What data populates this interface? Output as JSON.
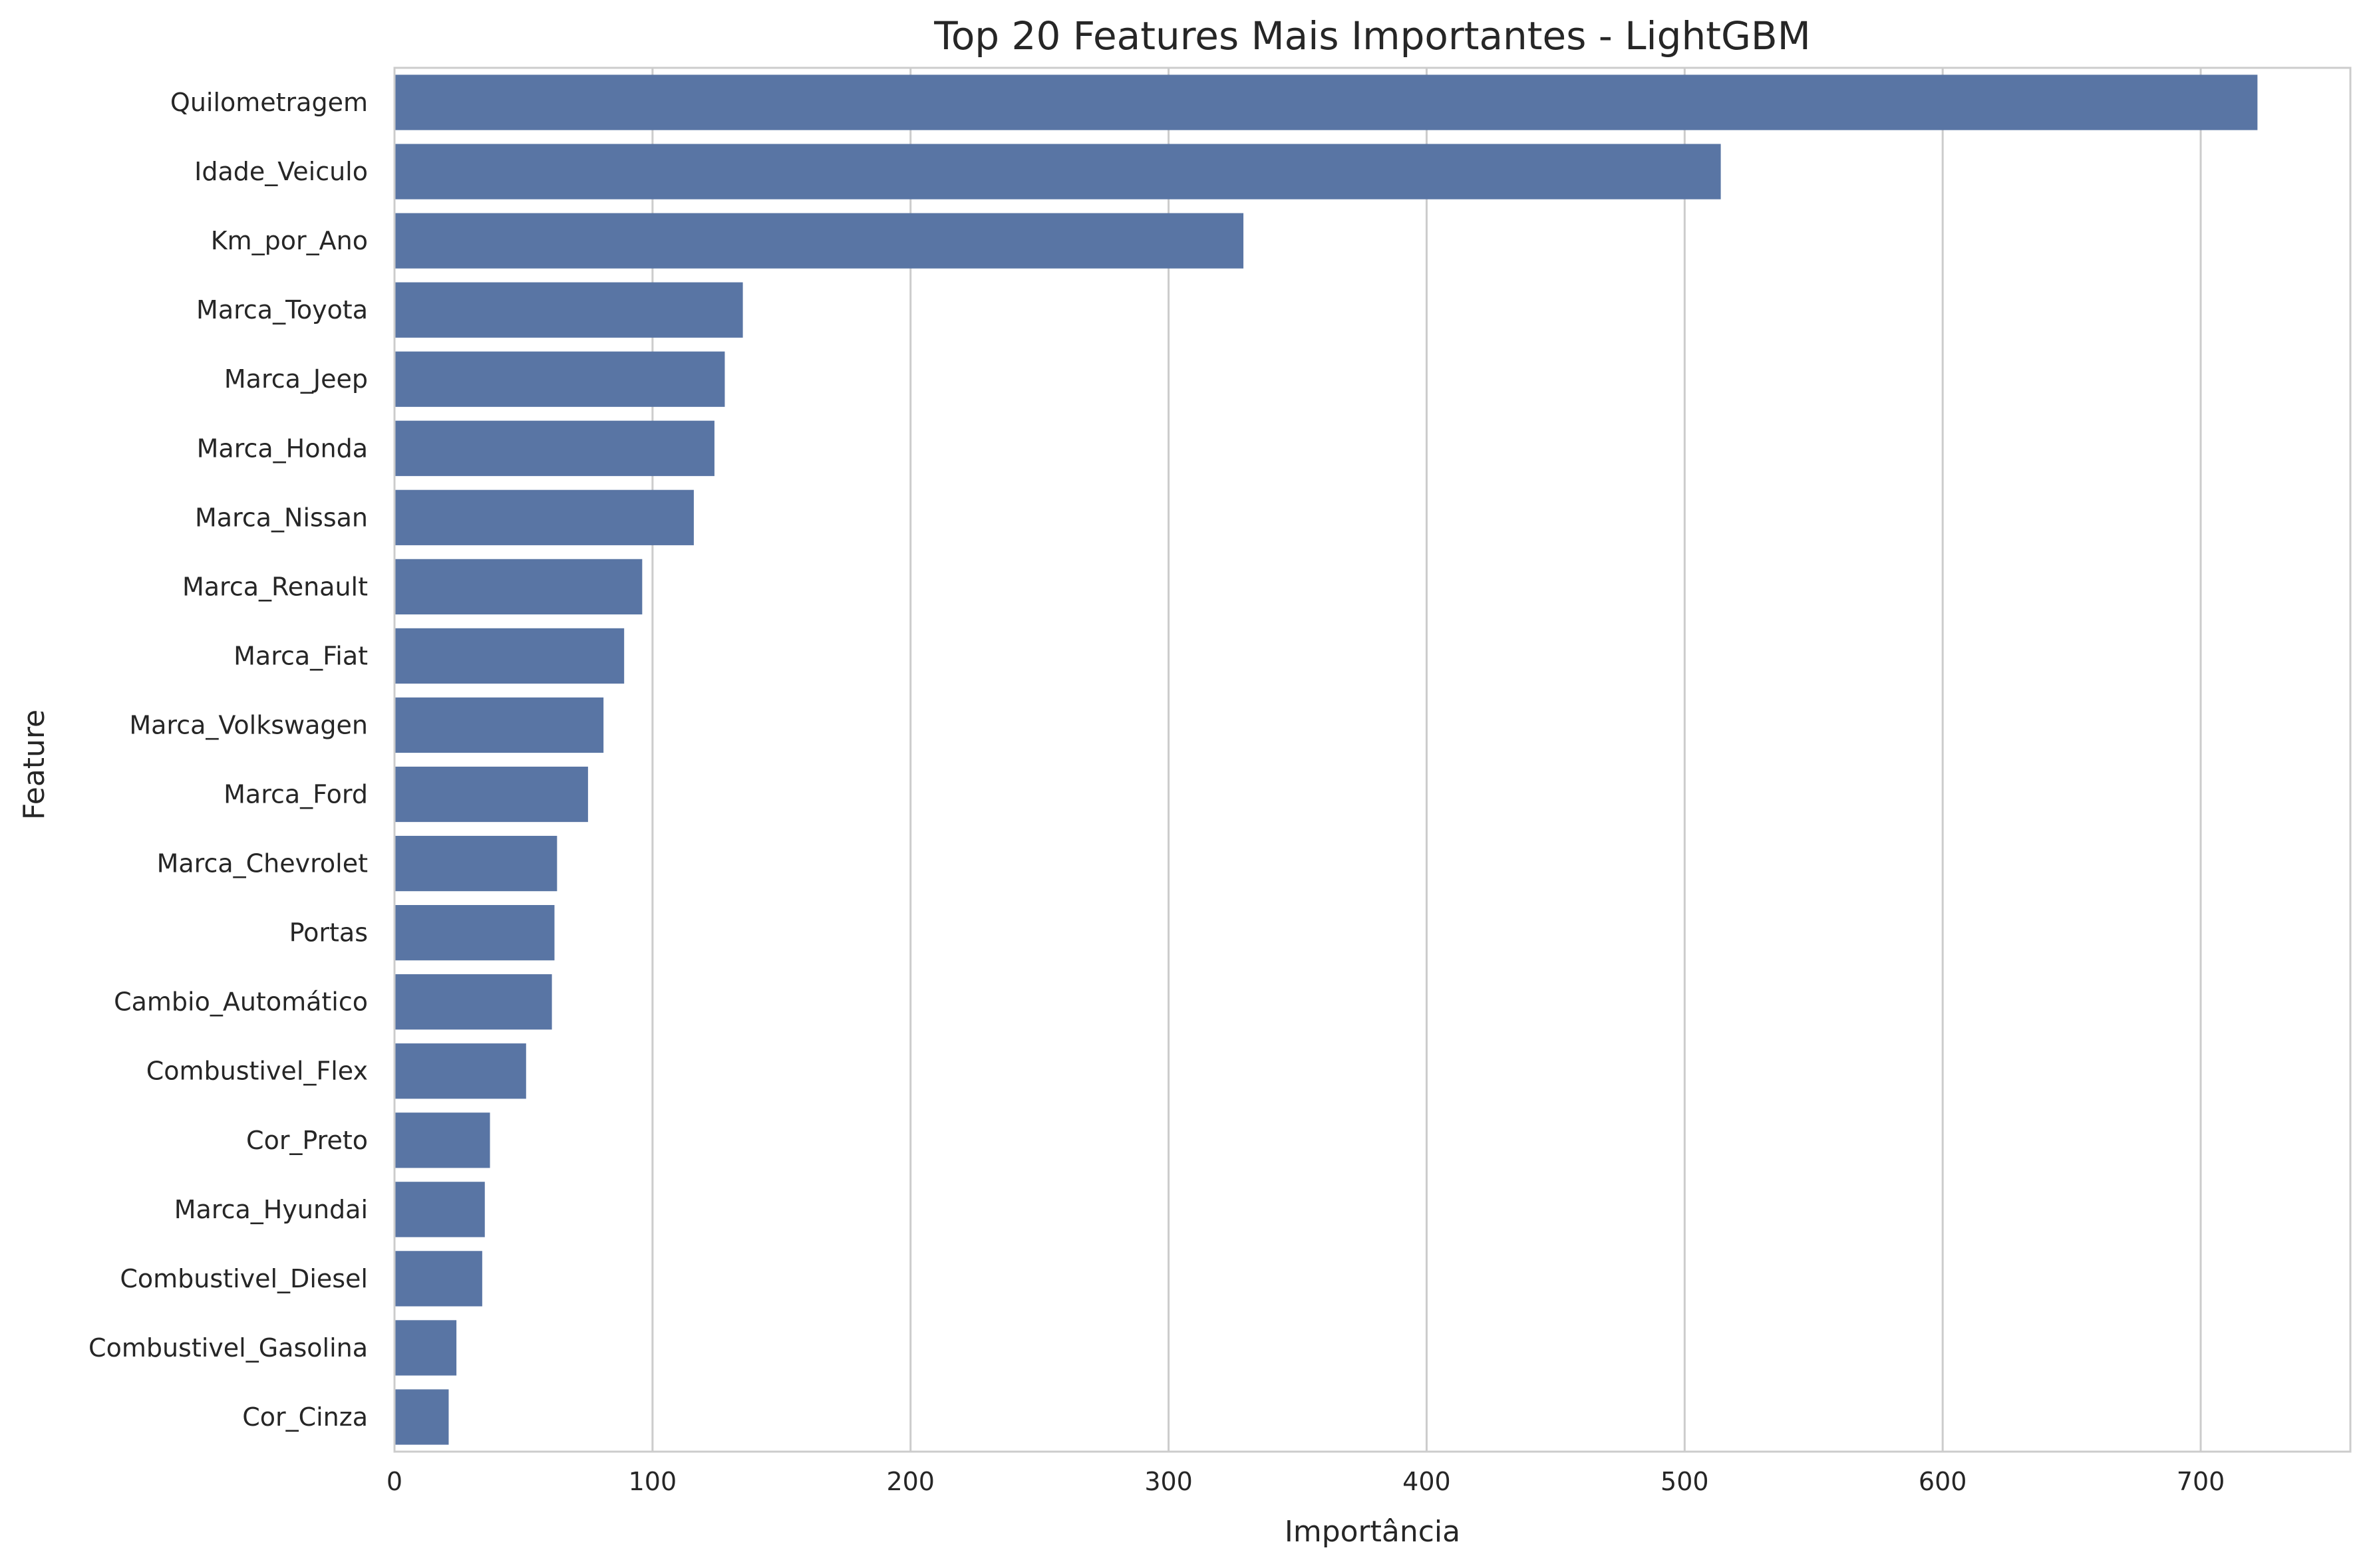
{
  "chart_data": {
    "type": "bar",
    "orientation": "horizontal",
    "title": "Top 20 Features Mais Importantes - LightGBM",
    "xlabel": "Importância",
    "ylabel": "Feature",
    "categories": [
      "Quilometragem",
      "Idade_Veiculo",
      "Km_por_Ano",
      "Marca_Toyota",
      "Marca_Jeep",
      "Marca_Honda",
      "Marca_Nissan",
      "Marca_Renault",
      "Marca_Fiat",
      "Marca_Volkswagen",
      "Marca_Ford",
      "Marca_Chevrolet",
      "Portas",
      "Cambio_Automático",
      "Combustivel_Flex",
      "Cor_Preto",
      "Marca_Hyundai",
      "Combustivel_Diesel",
      "Combustivel_Gasolina",
      "Cor_Cinza"
    ],
    "values": [
      722,
      514,
      329,
      135,
      128,
      124,
      116,
      96,
      89,
      81,
      75,
      63,
      62,
      61,
      51,
      37,
      35,
      34,
      24,
      21
    ],
    "xlim": [
      0,
      758
    ],
    "xticks": [
      0,
      100,
      200,
      300,
      400,
      500,
      600,
      700
    ],
    "grid": true,
    "bar_color": "#5975a4",
    "grid_color": "#cccccc",
    "spine_color": "#cccccc"
  }
}
